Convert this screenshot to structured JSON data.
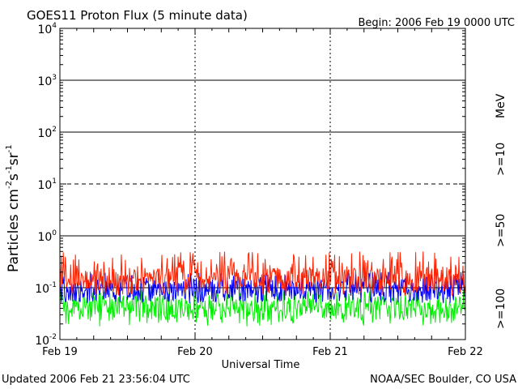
{
  "chart_data": {
    "type": "line",
    "title": "GOES11 Proton Flux (5 minute data)",
    "begin_label": "Begin: 2006 Feb 19 0000 UTC",
    "xlabel": "Universal Time",
    "ylabel_main": "Particles cm",
    "ylabel_exp1": "-2",
    "ylabel_s": "s",
    "ylabel_exp2": "-1",
    "ylabel_sr": "sr",
    "ylabel_exp3": "-1",
    "y_scale": "log",
    "ylim": [
      0.01,
      10000
    ],
    "y_ticks": [
      {
        "base": "10",
        "exp": "4"
      },
      {
        "base": "10",
        "exp": "3"
      },
      {
        "base": "10",
        "exp": "2"
      },
      {
        "base": "10",
        "exp": "1"
      },
      {
        "base": "10",
        "exp": "0"
      },
      {
        "base": "10",
        "exp": "-1"
      },
      {
        "base": "10",
        "exp": "-2"
      }
    ],
    "x_ticks": [
      "Feb 19",
      "Feb 20",
      "Feb 21",
      "Feb 22"
    ],
    "xlim_days": [
      0,
      3
    ],
    "reference_lines": [
      {
        "value": 1000,
        "style": "solid"
      },
      {
        "value": 100,
        "style": "solid"
      },
      {
        "value": 10,
        "style": "dashed"
      },
      {
        "value": 1,
        "style": "solid"
      },
      {
        "value": 0.1,
        "style": "solid"
      }
    ],
    "unit_label": "MeV",
    "series": [
      {
        "name": ">=10",
        "color": "#ff2200",
        "typical_value": 0.15,
        "max_value": 0.5,
        "min_value": 0.07
      },
      {
        "name": ">=50",
        "color": "#0000ff",
        "typical_value": 0.09,
        "max_value": 0.2,
        "min_value": 0.05
      },
      {
        "name": ">=100",
        "color": "#00ee00",
        "typical_value": 0.04,
        "max_value": 0.09,
        "min_value": 0.018
      }
    ],
    "data_end_day": 2.997
  },
  "footer": {
    "updated": "Updated 2006 Feb 21 23:56:04 UTC",
    "credit": "NOAA/SEC Boulder, CO USA"
  }
}
